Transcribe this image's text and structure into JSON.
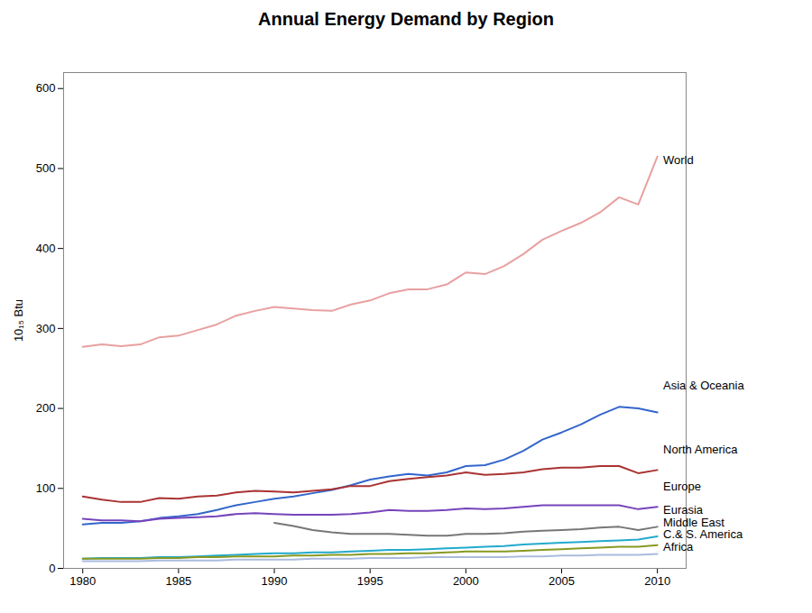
{
  "chart_data": {
    "type": "line",
    "title": "Annual Energy Demand by Region",
    "ylabel": "10₁₅ Btu",
    "xlim": [
      1979,
      2011.5
    ],
    "ylim": [
      0,
      620
    ],
    "xticks": [
      1980,
      1985,
      1990,
      1995,
      2000,
      2005,
      2010
    ],
    "yticks": [
      0,
      100,
      200,
      300,
      400,
      500,
      600
    ],
    "grid": false,
    "series": [
      {
        "name": "World",
        "color": "#e8a0a0",
        "x": [
          1980,
          1981,
          1982,
          1983,
          1984,
          1985,
          1986,
          1987,
          1988,
          1989,
          1990,
          1991,
          1992,
          1993,
          1994,
          1995,
          1996,
          1997,
          1998,
          1999,
          2000,
          2001,
          2002,
          2003,
          2004,
          2005,
          2006,
          2007,
          2008,
          2009,
          2010
        ],
        "values": [
          277,
          280,
          278,
          280,
          289,
          291,
          298,
          305,
          316,
          322,
          327,
          325,
          323,
          322,
          330,
          335,
          344,
          349,
          349,
          355,
          370,
          368,
          378,
          393,
          411,
          422,
          432,
          445,
          464,
          455,
          515
        ]
      },
      {
        "name": "Asia & Oceania",
        "color": "#3366cc",
        "x": [
          1980,
          1981,
          1982,
          1983,
          1984,
          1985,
          1986,
          1987,
          1988,
          1989,
          1990,
          1991,
          1992,
          1993,
          1994,
          1995,
          1996,
          1997,
          1998,
          1999,
          2000,
          2001,
          2002,
          2003,
          2004,
          2005,
          2006,
          2007,
          2008,
          2009,
          2010
        ],
        "values": [
          55,
          57,
          57,
          59,
          63,
          65,
          68,
          73,
          79,
          83,
          87,
          90,
          94,
          98,
          104,
          111,
          115,
          118,
          116,
          120,
          128,
          129,
          136,
          147,
          161,
          170,
          180,
          192,
          202,
          200,
          195
        ]
      },
      {
        "name": "North America",
        "color": "#aa3333",
        "x": [
          1980,
          1981,
          1982,
          1983,
          1984,
          1985,
          1986,
          1987,
          1988,
          1989,
          1990,
          1991,
          1992,
          1993,
          1994,
          1995,
          1996,
          1997,
          1998,
          1999,
          2000,
          2001,
          2002,
          2003,
          2004,
          2005,
          2006,
          2007,
          2008,
          2009,
          2010
        ],
        "values": [
          90,
          86,
          83,
          83,
          88,
          87,
          90,
          91,
          95,
          97,
          96,
          95,
          97,
          99,
          103,
          103,
          109,
          112,
          114,
          116,
          120,
          117,
          118,
          120,
          124,
          126,
          126,
          128,
          128,
          119,
          123
        ]
      },
      {
        "name": "Europe",
        "color": "#7744bb",
        "x": [
          1980,
          1981,
          1982,
          1983,
          1984,
          1985,
          1986,
          1987,
          1988,
          1989,
          1990,
          1991,
          1992,
          1993,
          1994,
          1995,
          1996,
          1997,
          1998,
          1999,
          2000,
          2001,
          2002,
          2003,
          2004,
          2005,
          2006,
          2007,
          2008,
          2009,
          2010
        ],
        "values": [
          62,
          60,
          60,
          59,
          62,
          63,
          64,
          65,
          68,
          69,
          68,
          67,
          67,
          67,
          68,
          70,
          73,
          72,
          72,
          73,
          75,
          74,
          75,
          77,
          79,
          79,
          79,
          79,
          79,
          74,
          77
        ]
      },
      {
        "name": "Eurasia",
        "color": "#777777",
        "x": [
          1990,
          1991,
          1992,
          1993,
          1994,
          1995,
          1996,
          1997,
          1998,
          1999,
          2000,
          2001,
          2002,
          2003,
          2004,
          2005,
          2006,
          2007,
          2008,
          2009,
          2010
        ],
        "values": [
          57,
          53,
          48,
          45,
          43,
          43,
          43,
          42,
          41,
          41,
          43,
          43,
          44,
          46,
          47,
          48,
          49,
          51,
          52,
          48,
          52
        ]
      },
      {
        "name": "Middle East",
        "color": "#22aacc",
        "x": [
          1980,
          1981,
          1982,
          1983,
          1984,
          1985,
          1986,
          1987,
          1988,
          1989,
          1990,
          1991,
          1992,
          1993,
          1994,
          1995,
          1996,
          1997,
          1998,
          1999,
          2000,
          2001,
          2002,
          2003,
          2004,
          2005,
          2006,
          2007,
          2008,
          2009,
          2010
        ],
        "values": [
          12,
          13,
          13,
          13,
          14,
          14,
          15,
          16,
          17,
          18,
          19,
          19,
          20,
          20,
          21,
          22,
          23,
          23,
          24,
          25,
          26,
          27,
          28,
          30,
          31,
          32,
          33,
          34,
          35,
          36,
          40
        ]
      },
      {
        "name": "C.& S. America",
        "color": "#889922",
        "x": [
          1980,
          1981,
          1982,
          1983,
          1984,
          1985,
          1986,
          1987,
          1988,
          1989,
          1990,
          1991,
          1992,
          1993,
          1994,
          1995,
          1996,
          1997,
          1998,
          1999,
          2000,
          2001,
          2002,
          2003,
          2004,
          2005,
          2006,
          2007,
          2008,
          2009,
          2010
        ],
        "values": [
          12,
          12,
          12,
          12,
          13,
          13,
          14,
          14,
          15,
          15,
          15,
          16,
          16,
          17,
          17,
          18,
          18,
          19,
          19,
          20,
          21,
          21,
          21,
          22,
          23,
          24,
          25,
          26,
          27,
          27,
          29
        ]
      },
      {
        "name": "Africa",
        "color": "#aabbdd",
        "x": [
          1980,
          1981,
          1982,
          1983,
          1984,
          1985,
          1986,
          1987,
          1988,
          1989,
          1990,
          1991,
          1992,
          1993,
          1994,
          1995,
          1996,
          1997,
          1998,
          1999,
          2000,
          2001,
          2002,
          2003,
          2004,
          2005,
          2006,
          2007,
          2008,
          2009,
          2010
        ],
        "values": [
          9,
          9,
          9,
          9,
          10,
          10,
          10,
          10,
          11,
          11,
          11,
          11,
          12,
          12,
          12,
          13,
          13,
          13,
          14,
          14,
          14,
          14,
          14,
          15,
          15,
          16,
          16,
          17,
          17,
          17,
          18
        ]
      }
    ],
    "annotations": [
      {
        "text": "World",
        "x": 2010.3,
        "y": 510
      },
      {
        "text": "Asia & Oceania",
        "x": 2010.3,
        "y": 228
      },
      {
        "text": "North America",
        "x": 2010.3,
        "y": 148
      },
      {
        "text": "Europe",
        "x": 2010.3,
        "y": 102
      },
      {
        "text": "Eurasia",
        "x": 2010.3,
        "y": 73
      },
      {
        "text": "Middle East",
        "x": 2010.3,
        "y": 57
      },
      {
        "text": "C.& S. America",
        "x": 2010.3,
        "y": 42
      },
      {
        "text": "Africa",
        "x": 2010.3,
        "y": 27
      }
    ]
  }
}
